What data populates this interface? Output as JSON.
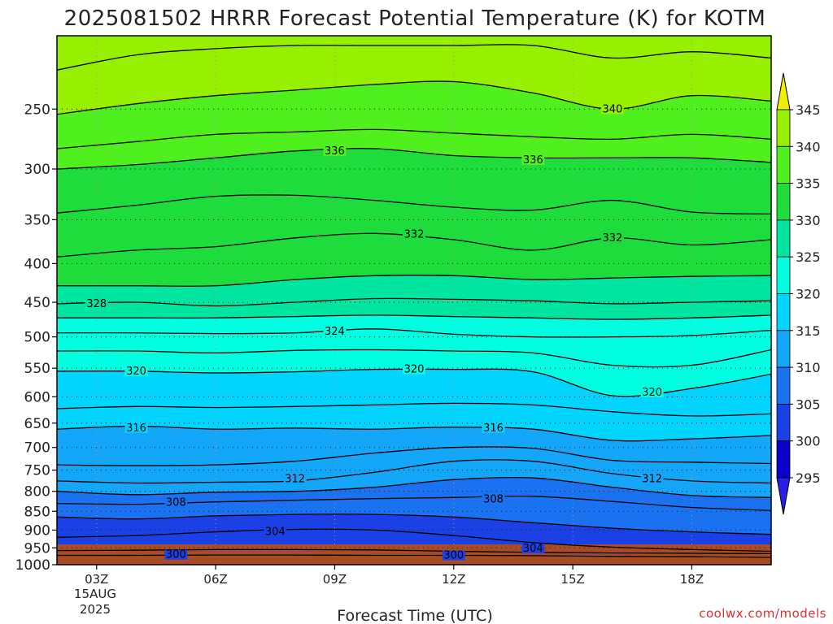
{
  "title": "2025081502 HRRR Forecast Potential Temperature (K) for KOTM",
  "credit": "coolwx.com/models",
  "chart_data": {
    "type": "contour",
    "title": "2025081502 HRRR Forecast Potential Temperature (K) for KOTM",
    "xlabel": "Forecast Time (UTC)",
    "ylabel": "",
    "x_ticks": [
      "03Z",
      "06Z",
      "09Z",
      "12Z",
      "15Z",
      "18Z"
    ],
    "x_tick_hours": [
      3,
      6,
      9,
      12,
      15,
      18
    ],
    "x_date_label": [
      "15AUG",
      "2025"
    ],
    "xlim": [
      2,
      20
    ],
    "y_ticks": [
      250,
      300,
      350,
      400,
      450,
      500,
      550,
      600,
      650,
      700,
      750,
      800,
      850,
      900,
      950,
      1000
    ],
    "ylim": [
      200,
      1000
    ],
    "y_scale": "log",
    "grid": true,
    "ground_color": "#a84c28",
    "colorbar": {
      "levels": [
        295,
        300,
        305,
        310,
        315,
        320,
        325,
        330,
        335,
        340,
        345
      ],
      "colors": [
        "#2a1ee6",
        "#0a00cc",
        "#1a40e6",
        "#1a72f0",
        "#14a6f8",
        "#00d4ff",
        "#00ffe0",
        "#00e6a0",
        "#1edc3c",
        "#50f01e",
        "#96f000",
        "#f0f000"
      ]
    },
    "contours": [
      {
        "level": 300,
        "p": [
          [
            2,
            972
          ],
          [
            4,
            972
          ],
          [
            6,
            971
          ],
          [
            8,
            971
          ],
          [
            10,
            972
          ],
          [
            12,
            972
          ],
          [
            14,
            973
          ],
          [
            16,
            975
          ],
          [
            18,
            976
          ],
          [
            20,
            978
          ]
        ]
      },
      {
        "level": 302,
        "p": [
          [
            2,
            958
          ],
          [
            4,
            957
          ],
          [
            6,
            955
          ],
          [
            8,
            955
          ],
          [
            10,
            956
          ],
          [
            12,
            960
          ],
          [
            14,
            963
          ],
          [
            16,
            965
          ],
          [
            18,
            966
          ],
          [
            20,
            967
          ]
        ]
      },
      {
        "level": 304,
        "p": [
          [
            2,
            920
          ],
          [
            4,
            915
          ],
          [
            6,
            905
          ],
          [
            8,
            898
          ],
          [
            10,
            900
          ],
          [
            12,
            915
          ],
          [
            14,
            935
          ],
          [
            16,
            948
          ],
          [
            18,
            955
          ],
          [
            20,
            960
          ]
        ]
      },
      {
        "level": 306,
        "p": [
          [
            2,
            865
          ],
          [
            4,
            870
          ],
          [
            6,
            862
          ],
          [
            8,
            858
          ],
          [
            10,
            858
          ],
          [
            12,
            865
          ],
          [
            14,
            880
          ],
          [
            16,
            895
          ],
          [
            18,
            905
          ],
          [
            20,
            912
          ]
        ]
      },
      {
        "level": 308,
        "p": [
          [
            2,
            830
          ],
          [
            4,
            832
          ],
          [
            6,
            826
          ],
          [
            8,
            822
          ],
          [
            10,
            818
          ],
          [
            12,
            815
          ],
          [
            14,
            812
          ],
          [
            16,
            825
          ],
          [
            18,
            840
          ],
          [
            20,
            848
          ]
        ]
      },
      {
        "level": 310,
        "p": [
          [
            2,
            800
          ],
          [
            4,
            808
          ],
          [
            6,
            802
          ],
          [
            8,
            800
          ],
          [
            10,
            790
          ],
          [
            12,
            772
          ],
          [
            14,
            768
          ],
          [
            16,
            790
          ],
          [
            18,
            810
          ],
          [
            20,
            815
          ]
        ]
      },
      {
        "level": 312,
        "p": [
          [
            2,
            775
          ],
          [
            4,
            780
          ],
          [
            6,
            778
          ],
          [
            8,
            775
          ],
          [
            10,
            755
          ],
          [
            12,
            730
          ],
          [
            14,
            730
          ],
          [
            16,
            758
          ],
          [
            18,
            775
          ],
          [
            20,
            780
          ]
        ]
      },
      {
        "level": 314,
        "p": [
          [
            2,
            738
          ],
          [
            4,
            740
          ],
          [
            6,
            738
          ],
          [
            8,
            730
          ],
          [
            10,
            712
          ],
          [
            12,
            700
          ],
          [
            14,
            702
          ],
          [
            16,
            728
          ],
          [
            18,
            732
          ],
          [
            20,
            735
          ]
        ]
      },
      {
        "level": 316,
        "p": [
          [
            2,
            662
          ],
          [
            4,
            656
          ],
          [
            6,
            662
          ],
          [
            8,
            660
          ],
          [
            10,
            662
          ],
          [
            12,
            658
          ],
          [
            14,
            662
          ],
          [
            16,
            685
          ],
          [
            18,
            682
          ],
          [
            20,
            675
          ]
        ]
      },
      {
        "level": 318,
        "p": [
          [
            2,
            622
          ],
          [
            4,
            618
          ],
          [
            6,
            620
          ],
          [
            8,
            618
          ],
          [
            10,
            615
          ],
          [
            12,
            612
          ],
          [
            14,
            615
          ],
          [
            16,
            628
          ],
          [
            18,
            636
          ],
          [
            20,
            632
          ]
        ]
      },
      {
        "level": 320,
        "p": [
          [
            2,
            555
          ],
          [
            4,
            555
          ],
          [
            6,
            558
          ],
          [
            8,
            556
          ],
          [
            10,
            552
          ],
          [
            12,
            552
          ],
          [
            14,
            556
          ],
          [
            16,
            598
          ],
          [
            18,
            585
          ],
          [
            20,
            560
          ]
        ]
      },
      {
        "level": 322,
        "p": [
          [
            2,
            522
          ],
          [
            4,
            522
          ],
          [
            6,
            525
          ],
          [
            8,
            521
          ],
          [
            10,
            520
          ],
          [
            12,
            522
          ],
          [
            14,
            525
          ],
          [
            16,
            545
          ],
          [
            18,
            545
          ],
          [
            20,
            520
          ]
        ]
      },
      {
        "level": 324,
        "p": [
          [
            2,
            494
          ],
          [
            4,
            494
          ],
          [
            6,
            495
          ],
          [
            8,
            494
          ],
          [
            10,
            488
          ],
          [
            12,
            496
          ],
          [
            14,
            500
          ],
          [
            16,
            500
          ],
          [
            18,
            498
          ],
          [
            20,
            490
          ]
        ]
      },
      {
        "level": 326,
        "p": [
          [
            2,
            472
          ],
          [
            4,
            472
          ],
          [
            6,
            472
          ],
          [
            8,
            470
          ],
          [
            10,
            468
          ],
          [
            12,
            470
          ],
          [
            14,
            472
          ],
          [
            16,
            474
          ],
          [
            18,
            472
          ],
          [
            20,
            468
          ]
        ]
      },
      {
        "level": 328,
        "p": [
          [
            2,
            452
          ],
          [
            4,
            450
          ],
          [
            6,
            455
          ],
          [
            8,
            450
          ],
          [
            10,
            445
          ],
          [
            12,
            446
          ],
          [
            14,
            448
          ],
          [
            16,
            452
          ],
          [
            18,
            450
          ],
          [
            20,
            448
          ]
        ]
      },
      {
        "level": 330,
        "p": [
          [
            2,
            428
          ],
          [
            4,
            428
          ],
          [
            6,
            428
          ],
          [
            8,
            420
          ],
          [
            10,
            415
          ],
          [
            12,
            415
          ],
          [
            14,
            420
          ],
          [
            16,
            418
          ],
          [
            18,
            416
          ],
          [
            20,
            415
          ]
        ]
      },
      {
        "level": 332,
        "p": [
          [
            2,
            392
          ],
          [
            4,
            384
          ],
          [
            6,
            380
          ],
          [
            8,
            370
          ],
          [
            10,
            365
          ],
          [
            12,
            372
          ],
          [
            14,
            384
          ],
          [
            16,
            370
          ],
          [
            18,
            378
          ],
          [
            20,
            372
          ]
        ]
      },
      {
        "level": 334,
        "p": [
          [
            2,
            343
          ],
          [
            4,
            335
          ],
          [
            6,
            326
          ],
          [
            8,
            325
          ],
          [
            10,
            330
          ],
          [
            12,
            337
          ],
          [
            14,
            340
          ],
          [
            16,
            330
          ],
          [
            18,
            342
          ],
          [
            20,
            344
          ]
        ]
      },
      {
        "level": 336,
        "p": [
          [
            2,
            300
          ],
          [
            4,
            296
          ],
          [
            6,
            290
          ],
          [
            8,
            284
          ],
          [
            10,
            282
          ],
          [
            12,
            288
          ],
          [
            14,
            290
          ],
          [
            16,
            290
          ],
          [
            18,
            290
          ],
          [
            20,
            294
          ]
        ]
      },
      {
        "level": 338,
        "p": [
          [
            2,
            282
          ],
          [
            4,
            276
          ],
          [
            6,
            270
          ],
          [
            8,
            268
          ],
          [
            10,
            266
          ],
          [
            12,
            269
          ],
          [
            14,
            272
          ],
          [
            16,
            274
          ],
          [
            18,
            270
          ],
          [
            20,
            274
          ]
        ]
      },
      {
        "level": 340,
        "p": [
          [
            2,
            254
          ],
          [
            4,
            246
          ],
          [
            6,
            240
          ],
          [
            8,
            236
          ],
          [
            10,
            232
          ],
          [
            12,
            230
          ],
          [
            14,
            238
          ],
          [
            16,
            250
          ],
          [
            18,
            240
          ],
          [
            20,
            244
          ]
        ]
      },
      {
        "level": 342,
        "p": [
          [
            2,
            222
          ],
          [
            4,
            212
          ],
          [
            6,
            208
          ],
          [
            8,
            206
          ],
          [
            10,
            206
          ],
          [
            12,
            206
          ],
          [
            14,
            206
          ],
          [
            16,
            214
          ],
          [
            18,
            210
          ],
          [
            20,
            214
          ]
        ]
      }
    ],
    "contour_labels": [
      {
        "text": "300",
        "x": 5,
        "p": 970
      },
      {
        "text": "300",
        "x": 12,
        "p": 972
      },
      {
        "text": "304",
        "x": 7.5,
        "p": 905
      },
      {
        "text": "304",
        "x": 14,
        "p": 952
      },
      {
        "text": "308",
        "x": 5,
        "p": 828
      },
      {
        "text": "308",
        "x": 13,
        "p": 820
      },
      {
        "text": "312",
        "x": 8,
        "p": 770
      },
      {
        "text": "312",
        "x": 17,
        "p": 770
      },
      {
        "text": "316",
        "x": 4,
        "p": 660
      },
      {
        "text": "316",
        "x": 13,
        "p": 660
      },
      {
        "text": "320",
        "x": 4,
        "p": 555
      },
      {
        "text": "320",
        "x": 11,
        "p": 552
      },
      {
        "text": "320",
        "x": 17,
        "p": 592
      },
      {
        "text": "324",
        "x": 9,
        "p": 492
      },
      {
        "text": "328",
        "x": 3,
        "p": 452
      },
      {
        "text": "332",
        "x": 11,
        "p": 366
      },
      {
        "text": "332",
        "x": 16,
        "p": 370
      },
      {
        "text": "336",
        "x": 9,
        "p": 284
      },
      {
        "text": "336",
        "x": 14,
        "p": 292
      },
      {
        "text": "340",
        "x": 16,
        "p": 250
      }
    ]
  }
}
